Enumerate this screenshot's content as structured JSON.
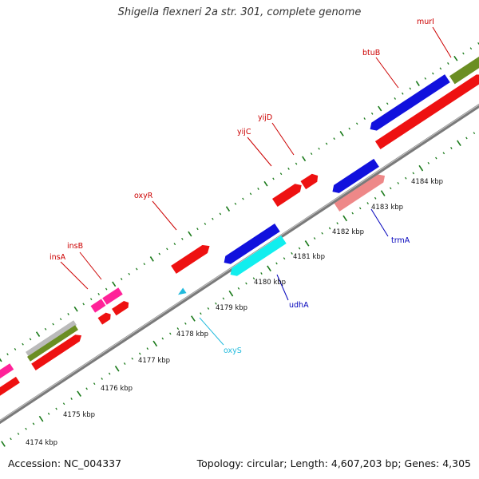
{
  "title": "Shigella flexneri 2a str. 301, complete genome",
  "footer": {
    "accession": "Accession: NC_004337",
    "summary": "Topology: circular; Length: 4,607,203 bp; Genes: 4,305"
  },
  "axis": {
    "unit": "kbp",
    "ticks": [
      "4174 kbp",
      "4175 kbp",
      "4176 kbp",
      "4177 kbp",
      "4178 kbp",
      "4179 kbp",
      "4180 kbp",
      "4181 kbp",
      "4182 kbp",
      "4183 kbp",
      "4184 kbp"
    ]
  },
  "colors": {
    "backbone": "#888888",
    "tick": "#1a7a1a",
    "forward_gene": "#ee1111",
    "reverse_gene": "#1111dd",
    "forward_label": "#cc0000",
    "reverse_label": "#0000bb",
    "rna_label": "#22bbdd",
    "insertion": "#ff2299",
    "pseudo": "#6b8e23",
    "gray": "#bbbbbb",
    "cyan": "#11eeee",
    "pink": "#ee8888"
  },
  "genes": [
    {
      "name": "insA",
      "color": "#cc0000"
    },
    {
      "name": "insB",
      "color": "#cc0000"
    },
    {
      "name": "oxyR",
      "color": "#cc0000"
    },
    {
      "name": "yijC",
      "color": "#cc0000"
    },
    {
      "name": "yijD",
      "color": "#cc0000"
    },
    {
      "name": "btuB",
      "color": "#cc0000"
    },
    {
      "name": "murI",
      "color": "#cc0000"
    },
    {
      "name": "oxyS",
      "color": "#22bbdd"
    },
    {
      "name": "udhA",
      "color": "#0000bb"
    },
    {
      "name": "trmA",
      "color": "#0000bb"
    }
  ]
}
